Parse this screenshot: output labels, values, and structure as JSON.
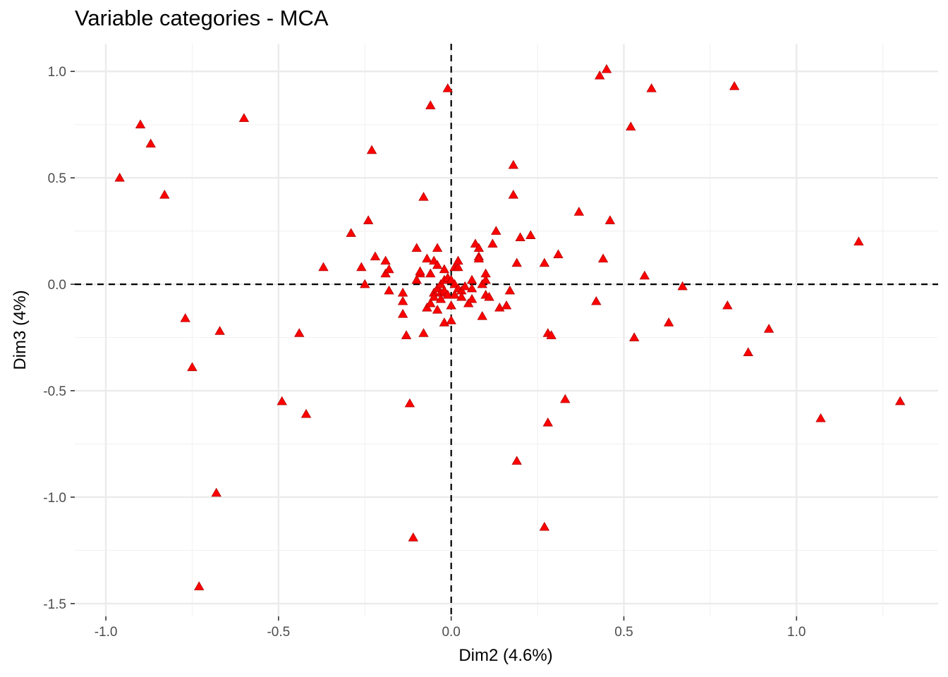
{
  "chart_data": {
    "type": "scatter",
    "title": "Variable categories - MCA",
    "xlabel": "Dim2 (4.6%)",
    "ylabel": "Dim3 (4%)",
    "xlim": [
      -1.09,
      1.41
    ],
    "ylim": [
      -1.56,
      1.13
    ],
    "xticks": [
      -1.0,
      -0.5,
      0.0,
      0.5,
      1.0
    ],
    "xtick_labels": [
      "-1.0",
      "-0.5",
      "0.0",
      "0.5",
      "1.0"
    ],
    "yticks": [
      1.0,
      0.5,
      0.0,
      -0.5,
      -1.0,
      -1.5
    ],
    "ytick_labels": [
      "1.0",
      "0.5",
      "0.0",
      "-0.5",
      "-1.0",
      "-1.5"
    ],
    "grid": true,
    "reference_lines": {
      "x": 0,
      "y": 0,
      "style": "dashed"
    },
    "marker": {
      "shape": "triangle",
      "color": "#ff0000",
      "edge": "#b00000"
    },
    "points": [
      [
        -0.96,
        0.5
      ],
      [
        -0.9,
        0.75
      ],
      [
        -0.87,
        0.66
      ],
      [
        -0.83,
        0.42
      ],
      [
        -0.6,
        0.78
      ],
      [
        -0.77,
        -0.16
      ],
      [
        -0.75,
        -0.39
      ],
      [
        -0.67,
        -0.22
      ],
      [
        -0.68,
        -0.98
      ],
      [
        -0.73,
        -1.42
      ],
      [
        -0.49,
        -0.55
      ],
      [
        -0.44,
        -0.23
      ],
      [
        -0.42,
        -0.61
      ],
      [
        -0.37,
        0.08
      ],
      [
        -0.29,
        0.24
      ],
      [
        -0.26,
        0.08
      ],
      [
        -0.25,
        0.0
      ],
      [
        -0.24,
        0.3
      ],
      [
        -0.23,
        0.63
      ],
      [
        -0.22,
        0.13
      ],
      [
        -0.19,
        0.11
      ],
      [
        -0.19,
        0.05
      ],
      [
        -0.18,
        0.07
      ],
      [
        -0.18,
        -0.03
      ],
      [
        -0.14,
        -0.04
      ],
      [
        -0.14,
        -0.08
      ],
      [
        -0.14,
        -0.14
      ],
      [
        -0.13,
        -0.24
      ],
      [
        -0.12,
        -0.56
      ],
      [
        -0.1,
        0.17
      ],
      [
        -0.1,
        0.02
      ],
      [
        -0.09,
        0.05
      ],
      [
        -0.09,
        0.06
      ],
      [
        -0.08,
        -0.23
      ],
      [
        -0.08,
        0.41
      ],
      [
        -0.07,
        0.12
      ],
      [
        -0.07,
        -0.11
      ],
      [
        -0.06,
        0.05
      ],
      [
        -0.06,
        -0.09
      ],
      [
        -0.06,
        0.84
      ],
      [
        -0.05,
        -0.04
      ],
      [
        -0.05,
        0.11
      ],
      [
        -0.05,
        -0.06
      ],
      [
        -0.04,
        0.09
      ],
      [
        -0.04,
        -0.02
      ],
      [
        -0.04,
        -0.12
      ],
      [
        -0.04,
        0.17
      ],
      [
        -0.03,
        -0.04
      ],
      [
        -0.03,
        0.0
      ],
      [
        -0.03,
        -0.07
      ],
      [
        -0.02,
        0.02
      ],
      [
        -0.02,
        -0.03
      ],
      [
        -0.02,
        0.07
      ],
      [
        -0.02,
        -0.18
      ],
      [
        -0.01,
        0.92
      ],
      [
        -0.01,
        0.03
      ],
      [
        -0.01,
        -0.05
      ],
      [
        0.0,
        0.02
      ],
      [
        0.0,
        -0.1
      ],
      [
        0.0,
        -0.17
      ],
      [
        0.01,
        0.08
      ],
      [
        0.01,
        0.0
      ],
      [
        0.01,
        -0.05
      ],
      [
        0.02,
        0.08
      ],
      [
        0.02,
        0.11
      ],
      [
        0.02,
        -0.02
      ],
      [
        0.03,
        -0.03
      ],
      [
        0.03,
        -0.06
      ],
      [
        0.04,
        -0.01
      ],
      [
        0.05,
        -0.09
      ],
      [
        0.06,
        0.02
      ],
      [
        0.06,
        -0.02
      ],
      [
        0.06,
        -0.07
      ],
      [
        0.07,
        0.19
      ],
      [
        0.08,
        0.17
      ],
      [
        0.08,
        0.13
      ],
      [
        0.08,
        0.12
      ],
      [
        0.09,
        -0.15
      ],
      [
        0.09,
        0.0
      ],
      [
        0.1,
        -0.05
      ],
      [
        0.1,
        0.02
      ],
      [
        0.1,
        0.05
      ],
      [
        0.11,
        -0.06
      ],
      [
        0.12,
        0.19
      ],
      [
        0.13,
        0.25
      ],
      [
        0.14,
        -0.11
      ],
      [
        0.16,
        -0.1
      ],
      [
        0.18,
        0.56
      ],
      [
        0.18,
        0.42
      ],
      [
        0.17,
        -0.03
      ],
      [
        0.19,
        0.1
      ],
      [
        0.19,
        -0.83
      ],
      [
        0.2,
        0.22
      ],
      [
        0.23,
        0.23
      ],
      [
        0.27,
        0.1
      ],
      [
        0.27,
        -1.14
      ],
      [
        0.28,
        -0.23
      ],
      [
        0.29,
        -0.24
      ],
      [
        0.28,
        -0.65
      ],
      [
        0.31,
        0.14
      ],
      [
        0.33,
        -0.54
      ],
      [
        0.37,
        0.34
      ],
      [
        0.42,
        -0.08
      ],
      [
        0.43,
        0.98
      ],
      [
        0.44,
        0.12
      ],
      [
        0.45,
        1.01
      ],
      [
        0.46,
        0.3
      ],
      [
        0.52,
        0.74
      ],
      [
        0.53,
        -0.25
      ],
      [
        0.56,
        0.04
      ],
      [
        0.58,
        0.92
      ],
      [
        0.63,
        -0.18
      ],
      [
        0.67,
        -0.01
      ],
      [
        0.8,
        -0.1
      ],
      [
        0.82,
        0.93
      ],
      [
        0.86,
        -0.32
      ],
      [
        0.92,
        -0.21
      ],
      [
        1.07,
        -0.63
      ],
      [
        1.18,
        0.2
      ],
      [
        1.3,
        -0.55
      ],
      [
        -0.11,
        -1.19
      ]
    ]
  }
}
